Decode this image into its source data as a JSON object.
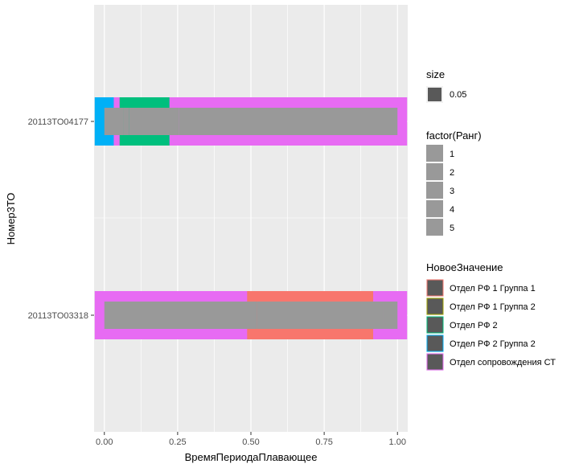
{
  "chart_data": {
    "type": "bar",
    "subtype": "horizontal-range",
    "xlabel": "ВремяПериодаПлавающее",
    "ylabel": "Номер3ТО",
    "xlim": [
      -0.035,
      1.035
    ],
    "xticks": [
      0.0,
      0.25,
      0.5,
      0.75,
      1.0
    ],
    "xtick_labels": [
      "0.00",
      "0.25",
      "0.50",
      "0.75",
      "1.00"
    ],
    "categories": [
      "20113TO04177",
      "20113TO03318"
    ],
    "grid": true,
    "legend_placement": "right",
    "panel_color": "#ebebeb",
    "grid_color": "#ffffff",
    "inner_fill_color": "#999999",
    "segments": [
      {
        "category": "20113TO04177",
        "start": 0.0,
        "end": 0.065,
        "group": "Отдел РФ 2 Группа 2"
      },
      {
        "category": "20113TO04177",
        "start": 0.065,
        "end": 0.085,
        "group": "Отдел сопровождения СТ"
      },
      {
        "category": "20113TO04177",
        "start": 0.085,
        "end": 0.255,
        "group": "Отдел РФ 2"
      },
      {
        "category": "20113TO04177",
        "start": 0.255,
        "end": 1.0,
        "group": "Отдел сопровождения СТ"
      },
      {
        "category": "20113TO03318",
        "start": 0.0,
        "end": 0.52,
        "group": "Отдел сопровождения СТ"
      },
      {
        "category": "20113TO03318",
        "start": 0.52,
        "end": 0.95,
        "group": "Отдел РФ 1 Группа 1"
      },
      {
        "category": "20113TO03318",
        "start": 0.95,
        "end": 1.0,
        "group": "Отдел сопровождения СТ"
      }
    ],
    "legends": {
      "size": {
        "title": "size",
        "items": [
          "0.05"
        ],
        "key_color": "#595959"
      },
      "rank": {
        "title": "factor(Ранг)",
        "items": [
          "1",
          "2",
          "3",
          "4",
          "5"
        ],
        "key_color": "#999999"
      },
      "group": {
        "title": "НовоеЗначение",
        "items": [
          {
            "label": "Отдел РФ 1 Группа 1",
            "color": "#f8766d"
          },
          {
            "label": "Отдел РФ 1 Группа 2",
            "color": "#a3a500"
          },
          {
            "label": "Отдел РФ 2",
            "color": "#00bf7d"
          },
          {
            "label": "Отдел РФ 2 Группа 2",
            "color": "#00b0f6"
          },
          {
            "label": "Отдел сопровождения СТ",
            "color": "#e76bf3"
          }
        ],
        "key_fill": "#595959"
      }
    }
  }
}
